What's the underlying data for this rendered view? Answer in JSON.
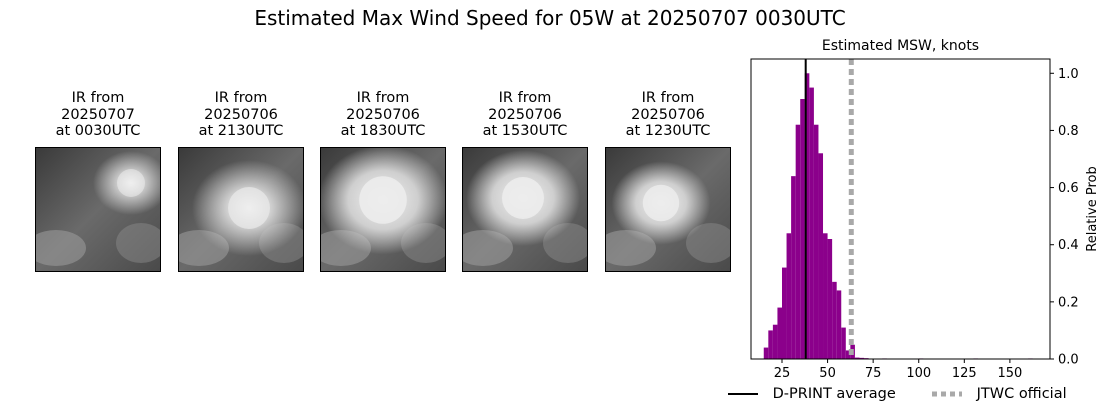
{
  "page": {
    "title": "Estimated Max Wind Speed for 05W at 20250707 0030UTC"
  },
  "panels": [
    {
      "caption": "IR from\n20250707\nat 0030UTC",
      "icon": "ir-satellite-image"
    },
    {
      "caption": "IR from\n20250706\nat 2130UTC",
      "icon": "ir-satellite-image"
    },
    {
      "caption": "IR from\n20250706\nat 1830UTC",
      "icon": "ir-satellite-image"
    },
    {
      "caption": "IR from\n20250706\nat 1530UTC",
      "icon": "ir-satellite-image"
    },
    {
      "caption": "IR from\n20250706\nat 1230UTC",
      "icon": "ir-satellite-image"
    }
  ],
  "chart_data": {
    "type": "bar",
    "title": "Estimated MSW, knots",
    "xlabel": "",
    "ylabel": "Relative Prob",
    "xlim": [
      8,
      172
    ],
    "ylim": [
      0,
      1.05
    ],
    "xticks": [
      "25",
      "50",
      "75",
      "100",
      "125",
      "150"
    ],
    "xtick_values": [
      25,
      50,
      75,
      100,
      125,
      150
    ],
    "yticks": [
      "0.0",
      "0.2",
      "0.4",
      "0.6",
      "0.8",
      "1.0"
    ],
    "ytick_values": [
      0,
      0.2,
      0.4,
      0.6,
      0.8,
      1.0
    ],
    "y_axis_side": "right",
    "bin_width": 2.5,
    "bins": [
      {
        "x": 15,
        "value": 0.04
      },
      {
        "x": 17.5,
        "value": 0.1
      },
      {
        "x": 20,
        "value": 0.12
      },
      {
        "x": 22.5,
        "value": 0.18
      },
      {
        "x": 25,
        "value": 0.32
      },
      {
        "x": 27.5,
        "value": 0.44
      },
      {
        "x": 30,
        "value": 0.64
      },
      {
        "x": 32.5,
        "value": 0.82
      },
      {
        "x": 35,
        "value": 0.91
      },
      {
        "x": 37.5,
        "value": 1.0
      },
      {
        "x": 40,
        "value": 0.95
      },
      {
        "x": 42.5,
        "value": 0.82
      },
      {
        "x": 45,
        "value": 0.72
      },
      {
        "x": 47.5,
        "value": 0.44
      },
      {
        "x": 50,
        "value": 0.42
      },
      {
        "x": 52.5,
        "value": 0.27
      },
      {
        "x": 55,
        "value": 0.24
      },
      {
        "x": 57.5,
        "value": 0.11
      },
      {
        "x": 60,
        "value": 0.03
      },
      {
        "x": 62.5,
        "value": 0.05
      },
      {
        "x": 65,
        "value": 0.005
      },
      {
        "x": 67.5,
        "value": 0.004
      },
      {
        "x": 70,
        "value": 0.003
      },
      {
        "x": 80,
        "value": 0.002
      },
      {
        "x": 100,
        "value": 0.002
      },
      {
        "x": 130,
        "value": 0.002
      },
      {
        "x": 160,
        "value": 0.002
      }
    ],
    "dprint_average": 38,
    "jtwc_official": 63,
    "colors": {
      "bars": "#8b008b",
      "dprint": "#000000",
      "jtwc": "#a9a9a9"
    },
    "legend": [
      {
        "label": "D-PRINT average",
        "style": "solid",
        "color": "#000000"
      },
      {
        "label": "JTWC official",
        "style": "dotted",
        "color": "#a9a9a9"
      }
    ],
    "legend_placement": "bottom"
  }
}
